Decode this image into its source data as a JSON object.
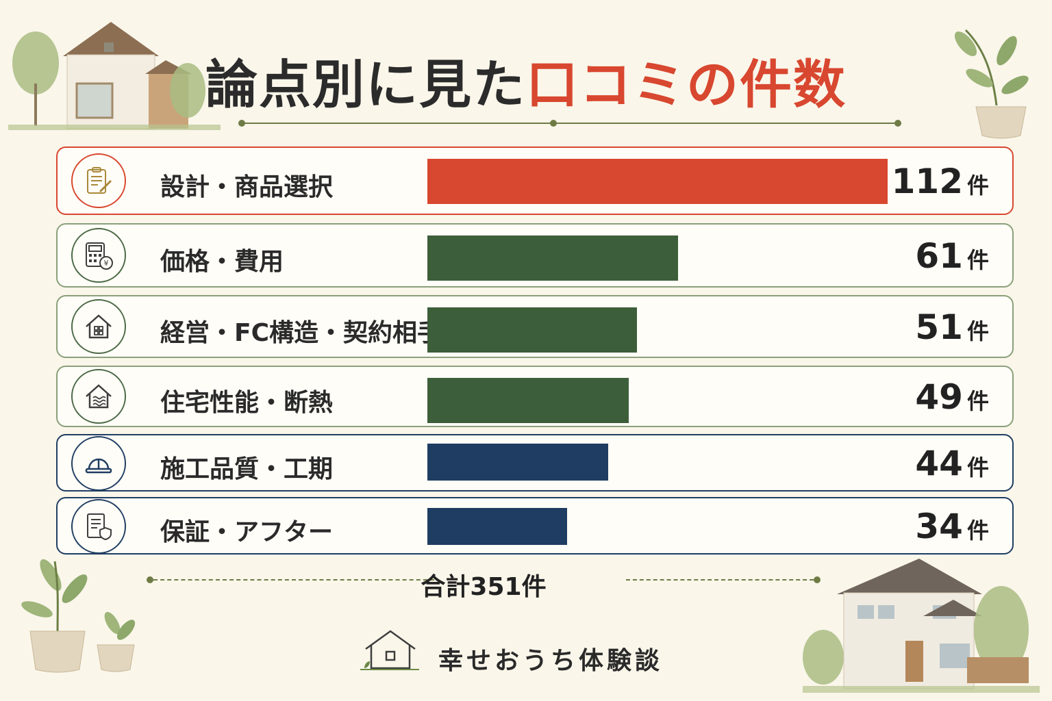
{
  "title": {
    "part1": "論点別に見た",
    "part2": "口コミの件数"
  },
  "colors": {
    "red": "#d8472f",
    "green": "#3d5e3a",
    "navy": "#1f3d62",
    "accent_line": "#6e7b45"
  },
  "chart_data": {
    "type": "bar",
    "orientation": "horizontal",
    "categories": [
      "設計・商品選択",
      "価格・費用",
      "経営・FC構造・契約相手",
      "住宅性能・断熱",
      "施工品質・工期",
      "保証・アフター"
    ],
    "values": [
      112,
      61,
      51,
      49,
      44,
      34
    ],
    "value_unit": "件",
    "bar_colors": [
      "#d8472f",
      "#3d5e3a",
      "#3d5e3a",
      "#3d5e3a",
      "#1f3d62",
      "#1f3d62"
    ],
    "xlim": [
      0,
      112
    ],
    "grid": false,
    "legend": "none"
  },
  "rows": [
    {
      "label": "設計・商品選択",
      "count": "112",
      "unit": "件",
      "icon": "clipboard-pencil-icon"
    },
    {
      "label": "価格・費用",
      "count": "61",
      "unit": "件",
      "icon": "calculator-yen-icon"
    },
    {
      "label": "経営・FC構造・契約相手",
      "count": "51",
      "unit": "件",
      "icon": "house-building-icon"
    },
    {
      "label": "住宅性能・断熱",
      "count": "49",
      "unit": "件",
      "icon": "house-insulation-icon"
    },
    {
      "label": "施工品質・工期",
      "count": "44",
      "unit": "件",
      "icon": "hard-hat-icon"
    },
    {
      "label": "保証・アフター",
      "count": "34",
      "unit": "件",
      "icon": "document-shield-icon"
    }
  ],
  "total": {
    "text": "合計351件"
  },
  "brand": {
    "name": "幸せおうち体験談",
    "icon": "house-logo-icon"
  }
}
